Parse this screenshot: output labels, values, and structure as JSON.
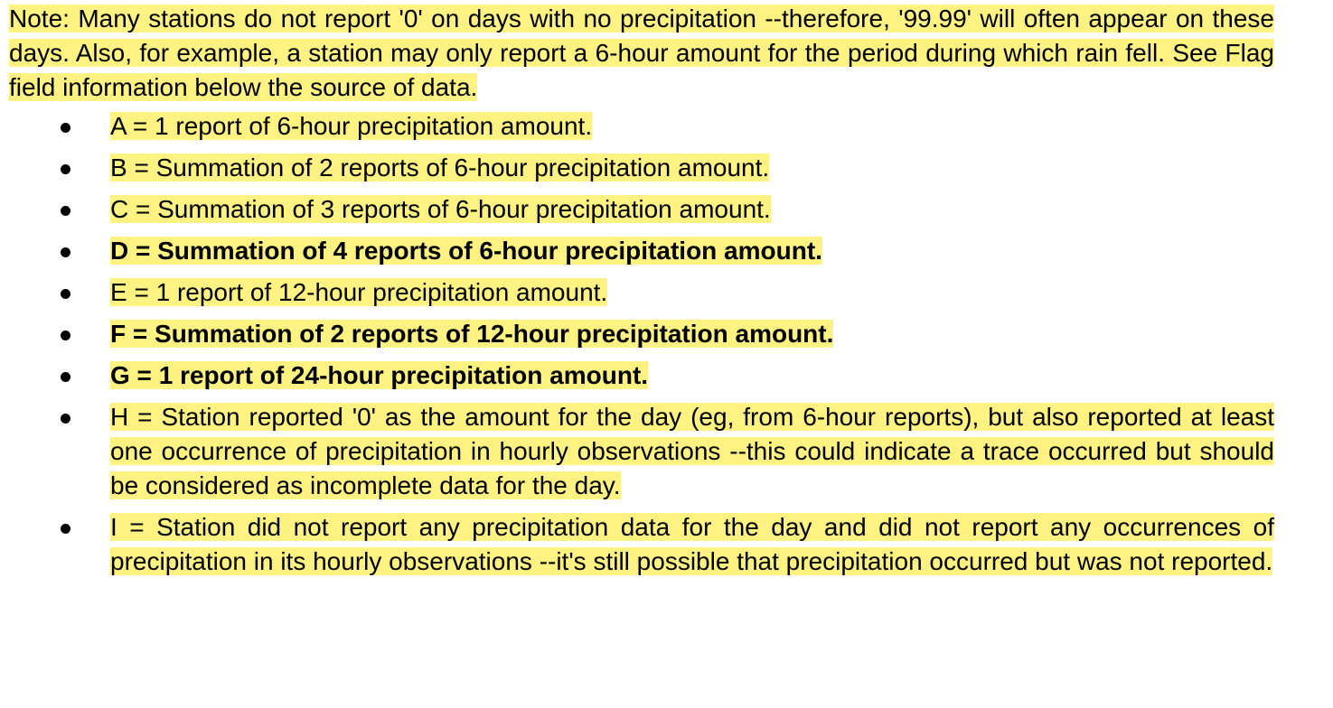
{
  "note": "Note:  Many stations do not report '0' on days with no precipitation --therefore, '99.99' will often appear on these days. Also, for example, a station may only report a 6-hour amount for the period during which rain fell. See Flag field information below the source of data.",
  "flags": [
    {
      "text": "A = 1 report of 6-hour precipitation amount.",
      "bold": false
    },
    {
      "text": "B = Summation of 2 reports of 6-hour precipitation amount.",
      "bold": false
    },
    {
      "text": "C = Summation of 3 reports of 6-hour precipitation amount.",
      "bold": false
    },
    {
      "text": "D = Summation of 4 reports of 6-hour precipitation amount.",
      "bold": true
    },
    {
      "text": "E = 1 report of 12-hour precipitation amount.",
      "bold": false
    },
    {
      "text": "F = Summation of 2 reports of 12-hour precipitation amount.",
      "bold": true
    },
    {
      "text": "G = 1 report of 24-hour precipitation amount.",
      "bold": true
    },
    {
      "text": "H = Station reported '0' as the amount for the day (eg, from 6-hour reports), but also reported at least one occurrence of precipitation in hourly observations --this could indicate a trace occurred but should be considered as incomplete data for the day.",
      "bold": false
    },
    {
      "text": "I = Station did not report any precipitation data for the day and did not report any occurrences of precipitation in its hourly observations --it's still possible that precipitation occurred but was not reported.",
      "bold": false
    }
  ],
  "highlight_color": "#fef283"
}
